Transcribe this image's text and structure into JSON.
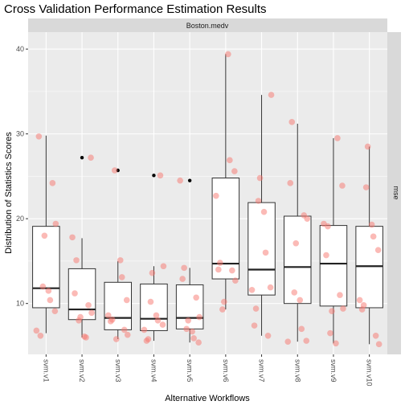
{
  "chart_data": {
    "type": "box",
    "title": "Cross Validation Performance Estimation Results",
    "facet_top": "Boston.medv",
    "facet_right": "mse",
    "xlabel": "Alternative Workflows",
    "ylabel": "Distribution of Statistics Scores",
    "ylim": [
      4,
      42
    ],
    "y_ticks": [
      10,
      20,
      30,
      40
    ],
    "categories": [
      "svm.v1",
      "svm.v2",
      "svm.v3",
      "svm.v4",
      "svm.v5",
      "svm.v6",
      "svm.v7",
      "svm.v8",
      "svm.v9",
      "svm.v10"
    ],
    "boxes": [
      {
        "q1": 9.5,
        "median": 11.8,
        "q3": 19.1,
        "whisker_low": 6.5,
        "whisker_high": 29.8,
        "outliers": []
      },
      {
        "q1": 8.1,
        "median": 9.3,
        "q3": 14.1,
        "whisker_low": 6.0,
        "whisker_high": 17.7,
        "outliers": [
          27.2
        ]
      },
      {
        "q1": 6.9,
        "median": 8.3,
        "q3": 12.5,
        "whisker_low": 5.8,
        "whisker_high": 15.0,
        "outliers": [
          25.7
        ]
      },
      {
        "q1": 6.8,
        "median": 8.2,
        "q3": 12.3,
        "whisker_low": 5.6,
        "whisker_high": 14.4,
        "outliers": [
          25.1
        ]
      },
      {
        "q1": 7.0,
        "median": 8.3,
        "q3": 12.2,
        "whisker_low": 5.4,
        "whisker_high": 14.2,
        "outliers": [
          24.5
        ]
      },
      {
        "q1": 12.9,
        "median": 14.7,
        "q3": 24.8,
        "whisker_low": 9.3,
        "whisker_high": 39.4,
        "outliers": []
      },
      {
        "q1": 11.0,
        "median": 14.0,
        "q3": 21.9,
        "whisker_low": 6.2,
        "whisker_high": 34.6,
        "outliers": []
      },
      {
        "q1": 10.0,
        "median": 14.3,
        "q3": 20.3,
        "whisker_low": 5.5,
        "whisker_high": 31.2,
        "outliers": []
      },
      {
        "q1": 9.7,
        "median": 14.7,
        "q3": 19.2,
        "whisker_low": 5.3,
        "whisker_high": 29.5,
        "outliers": []
      },
      {
        "q1": 9.5,
        "median": 14.4,
        "q3": 19.1,
        "whisker_low": 5.2,
        "whisker_high": 28.5,
        "outliers": []
      }
    ],
    "points": [
      [
        29.7,
        24.2,
        19.4,
        18.0,
        12.0,
        11.5,
        10.4,
        9.1,
        6.8,
        6.2
      ],
      [
        27.2,
        17.8,
        15.1,
        11.2,
        9.8,
        8.9,
        8.4,
        8.0,
        6.1,
        6.0
      ],
      [
        25.7,
        15.1,
        13.1,
        10.4,
        8.6,
        8.1,
        7.9,
        6.9,
        6.3,
        5.8
      ],
      [
        25.1,
        14.4,
        13.6,
        10.2,
        8.6,
        8.0,
        7.5,
        6.9,
        5.8,
        5.6
      ],
      [
        24.5,
        14.2,
        12.9,
        10.7,
        8.4,
        8.0,
        7.0,
        6.7,
        5.9,
        5.4
      ],
      [
        39.4,
        26.9,
        25.6,
        22.7,
        14.8,
        14.0,
        13.9,
        12.7,
        10.2,
        9.3
      ],
      [
        34.6,
        24.8,
        22.1,
        20.8,
        16.0,
        11.9,
        11.6,
        9.4,
        7.4,
        6.2
      ],
      [
        31.4,
        24.2,
        20.4,
        20.0,
        17.1,
        11.3,
        10.4,
        7.0,
        5.6,
        5.5
      ],
      [
        29.5,
        23.9,
        19.4,
        19.1,
        15.7,
        11.0,
        9.4,
        9.1,
        6.5,
        5.3
      ],
      [
        28.5,
        23.7,
        19.3,
        17.9,
        16.3,
        10.4,
        9.8,
        9.3,
        6.2,
        5.2
      ]
    ],
    "point_color": "#f8766d",
    "outlier_color": "#000000",
    "panel_bg": "#ebebeb",
    "strip_bg": "#d9d9d9",
    "grid_color": "#ffffff"
  }
}
